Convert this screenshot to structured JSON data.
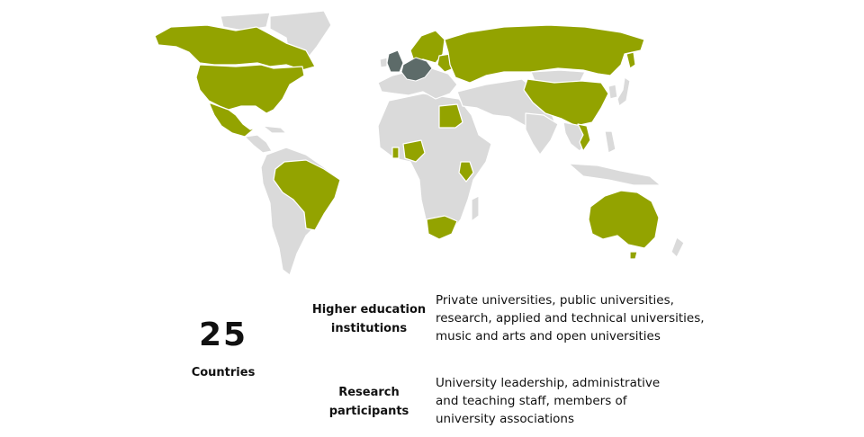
{
  "colors": {
    "land": "#dadada",
    "highlight": "#93a300",
    "europe_highlight": "#5d6b69",
    "border": "#ffffff"
  },
  "map": {
    "highlighted_regions": [
      "canada",
      "usa",
      "mexico",
      "brazil",
      "russia",
      "china",
      "vietnam",
      "egypt",
      "nigeria",
      "kenya",
      "south-africa",
      "australia",
      "uk",
      "western-europe",
      "nordics",
      "baltics"
    ]
  },
  "summary": {
    "count": "25",
    "count_label": "Countries"
  },
  "categories": [
    {
      "title": "Higher education\ninstitutions",
      "description": "Private universities, public universities,\nresearch, applied and technical universities,\nmusic and arts and open universities"
    },
    {
      "title": "Research\nparticipants",
      "description": "University leadership, administrative\nand teaching staff, members of\nuniversity associations"
    }
  ]
}
